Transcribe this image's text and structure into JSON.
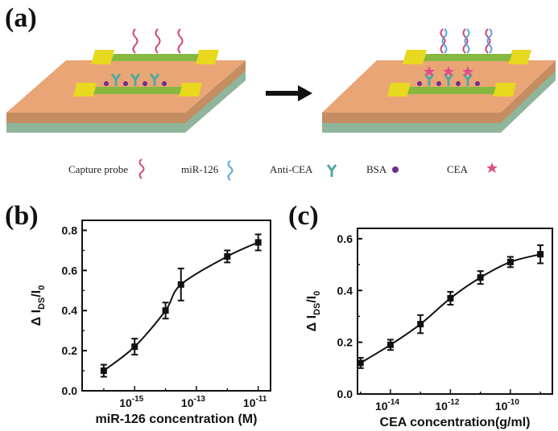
{
  "panels": {
    "a": "(a)",
    "b": "(b)",
    "c": "(c)"
  },
  "legend": {
    "capture_probe": "Capture probe",
    "mir126": "miR-126",
    "anti_cea": "Anti-CEA",
    "bsa": "BSA",
    "cea": "CEA"
  },
  "colors": {
    "substrate_top": "#E9A576",
    "substrate_side": "#C58D62",
    "substrate_base": "#8FB59A",
    "electrode": "#E8D81E",
    "channel": "#86B83F",
    "probe": "#D1477E",
    "mir": "#5AA6D6",
    "antibody": "#4FA9A2",
    "bsa": "#6E2E8E",
    "cea": "#E04E8A"
  },
  "chart_data": [
    {
      "type": "line",
      "title": "",
      "xlabel": "miR-126 concentration (M)",
      "ylabel": "ΔI_DS/I_0",
      "x_scale": "log",
      "xlim_exp": [
        -16.7,
        -10.6
      ],
      "ylim": [
        0.0,
        0.85
      ],
      "x_ticks_exp": [
        -15,
        -13,
        -11
      ],
      "y_ticks": [
        "0.0",
        "0.2",
        "0.4",
        "0.6",
        "0.8"
      ],
      "series": [
        {
          "x_exp": [
            -16,
            -15,
            -14,
            -13.5,
            -12,
            -11
          ],
          "values": [
            0.1,
            0.22,
            0.4,
            0.53,
            0.67,
            0.74
          ],
          "errors": [
            0.03,
            0.04,
            0.04,
            0.08,
            0.03,
            0.04
          ]
        }
      ]
    },
    {
      "type": "line",
      "title": "",
      "xlabel": "CEA concentration(g/ml)",
      "ylabel": "ΔI_DS/I_0",
      "x_scale": "log",
      "xlim_exp": [
        -15.1,
        -8.6
      ],
      "ylim": [
        0.0,
        0.64
      ],
      "x_ticks_exp": [
        -14,
        -12,
        -10
      ],
      "y_ticks": [
        "0.0",
        "0.2",
        "0.4",
        "0.6"
      ],
      "series": [
        {
          "x_exp": [
            -15,
            -14,
            -13,
            -12,
            -11,
            -10,
            -9
          ],
          "values": [
            0.12,
            0.19,
            0.27,
            0.37,
            0.45,
            0.51,
            0.54
          ],
          "errors": [
            0.02,
            0.02,
            0.035,
            0.025,
            0.025,
            0.02,
            0.035
          ]
        }
      ]
    }
  ]
}
